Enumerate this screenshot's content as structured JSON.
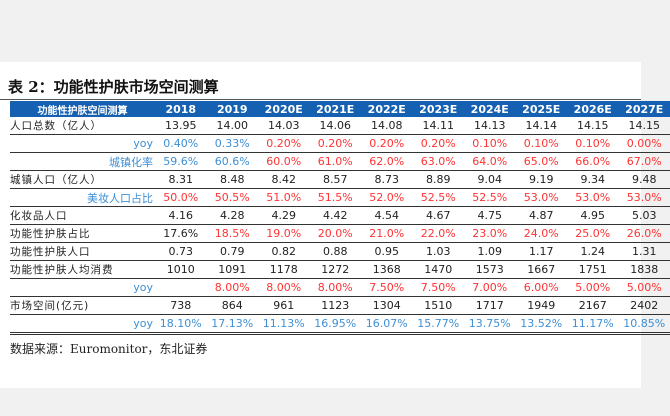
{
  "title": "表 2：功能性护肤市场空间测算",
  "colors": {
    "header_bg": "#1560b0",
    "blue": "#3d8fd6",
    "red": "#ff3333",
    "black": "#222222"
  },
  "table": {
    "header": [
      "功能性护肤空间测算",
      "2018",
      "2019",
      "2020E",
      "2021E",
      "2022E",
      "2023E",
      "2024E",
      "2025E",
      "2026E",
      "2027E"
    ],
    "rows": [
      {
        "label": "人口总数（亿人）",
        "sub": false,
        "values": [
          "13.95",
          "14.00",
          "14.03",
          "14.06",
          "14.08",
          "14.11",
          "14.13",
          "14.14",
          "14.15",
          "14.15"
        ],
        "colors": [
          "k",
          "k",
          "k",
          "k",
          "k",
          "k",
          "k",
          "k",
          "k",
          "k"
        ]
      },
      {
        "label": "yoy",
        "sub": true,
        "values": [
          "0.40%",
          "0.33%",
          "0.20%",
          "0.20%",
          "0.20%",
          "0.20%",
          "0.10%",
          "0.10%",
          "0.10%",
          "0.00%"
        ],
        "colors": [
          "b",
          "b",
          "r",
          "r",
          "r",
          "r",
          "r",
          "r",
          "r",
          "r"
        ]
      },
      {
        "label": "城镇化率",
        "sub": true,
        "values": [
          "59.6%",
          "60.6%",
          "60.0%",
          "61.0%",
          "62.0%",
          "63.0%",
          "64.0%",
          "65.0%",
          "66.0%",
          "67.0%"
        ],
        "colors": [
          "b",
          "b",
          "r",
          "r",
          "r",
          "r",
          "r",
          "r",
          "r",
          "r"
        ]
      },
      {
        "label": "城镇人口（亿人）",
        "sub": false,
        "values": [
          "8.31",
          "8.48",
          "8.42",
          "8.57",
          "8.73",
          "8.89",
          "9.04",
          "9.19",
          "9.34",
          "9.48"
        ],
        "colors": [
          "k",
          "k",
          "k",
          "k",
          "k",
          "k",
          "k",
          "k",
          "k",
          "k"
        ]
      },
      {
        "label": "美妆人口占比",
        "sub": true,
        "values": [
          "50.0%",
          "50.5%",
          "51.0%",
          "51.5%",
          "52.0%",
          "52.5%",
          "52.5%",
          "53.0%",
          "53.0%",
          "53.0%"
        ],
        "colors": [
          "r",
          "r",
          "r",
          "r",
          "r",
          "r",
          "r",
          "r",
          "r",
          "r"
        ]
      },
      {
        "label": "化妆品人口",
        "sub": false,
        "values": [
          "4.16",
          "4.28",
          "4.29",
          "4.42",
          "4.54",
          "4.67",
          "4.75",
          "4.87",
          "4.95",
          "5.03"
        ],
        "colors": [
          "k",
          "k",
          "k",
          "k",
          "k",
          "k",
          "k",
          "k",
          "k",
          "k"
        ]
      },
      {
        "label": "功能性护肤占比",
        "sub": false,
        "values": [
          "17.6%",
          "18.5%",
          "19.0%",
          "20.0%",
          "21.0%",
          "22.0%",
          "23.0%",
          "24.0%",
          "25.0%",
          "26.0%"
        ],
        "colors": [
          "k",
          "r",
          "r",
          "r",
          "r",
          "r",
          "r",
          "r",
          "r",
          "r"
        ]
      },
      {
        "label": "功能性护肤人口",
        "sub": false,
        "values": [
          "0.73",
          "0.79",
          "0.82",
          "0.88",
          "0.95",
          "1.03",
          "1.09",
          "1.17",
          "1.24",
          "1.31"
        ],
        "colors": [
          "k",
          "k",
          "k",
          "k",
          "k",
          "k",
          "k",
          "k",
          "k",
          "k"
        ]
      },
      {
        "label": "功能性护肤人均消费",
        "sub": false,
        "values": [
          "1010",
          "1091",
          "1178",
          "1272",
          "1368",
          "1470",
          "1573",
          "1667",
          "1751",
          "1838"
        ],
        "colors": [
          "k",
          "k",
          "k",
          "k",
          "k",
          "k",
          "k",
          "k",
          "k",
          "k"
        ]
      },
      {
        "label": "yoy",
        "sub": true,
        "values": [
          "",
          "8.00%",
          "8.00%",
          "8.00%",
          "7.50%",
          "7.50%",
          "7.00%",
          "6.00%",
          "5.00%",
          "5.00%"
        ],
        "colors": [
          "r",
          "r",
          "r",
          "r",
          "r",
          "r",
          "r",
          "r",
          "r",
          "r"
        ]
      },
      {
        "label": "市场空间(亿元)",
        "sub": false,
        "values": [
          "738",
          "864",
          "961",
          "1123",
          "1304",
          "1510",
          "1717",
          "1949",
          "2167",
          "2402"
        ],
        "colors": [
          "k",
          "k",
          "k",
          "k",
          "k",
          "k",
          "k",
          "k",
          "k",
          "k"
        ]
      },
      {
        "label": "yoy",
        "sub": true,
        "values": [
          "18.10%",
          "17.13%",
          "11.13%",
          "16.95%",
          "16.07%",
          "15.77%",
          "13.75%",
          "13.52%",
          "11.17%",
          "10.85%"
        ],
        "colors": [
          "b",
          "b",
          "b",
          "b",
          "b",
          "b",
          "b",
          "b",
          "b",
          "b"
        ]
      }
    ]
  },
  "source": "数据来源：Euromonitor，东北证券"
}
